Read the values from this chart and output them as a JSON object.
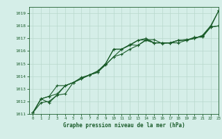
{
  "xlabel": "Graphe pression niveau de la mer (hPa)",
  "xlim": [
    -0.5,
    23
  ],
  "ylim": [
    1011,
    1019.5
  ],
  "yticks": [
    1011,
    1012,
    1013,
    1014,
    1015,
    1016,
    1017,
    1018,
    1019
  ],
  "xticks": [
    0,
    1,
    2,
    3,
    4,
    5,
    6,
    7,
    8,
    9,
    10,
    11,
    12,
    13,
    14,
    15,
    16,
    17,
    18,
    19,
    20,
    21,
    22,
    23
  ],
  "bg_color": "#d5eee8",
  "grid_color": "#b8d8cc",
  "line_color": "#1a5c2a",
  "line1_x": [
    0,
    1,
    2,
    3,
    4,
    5,
    6,
    7,
    8,
    9,
    10,
    11,
    12,
    13,
    14,
    15,
    16,
    17,
    18,
    19,
    20,
    21,
    22,
    23
  ],
  "line1_y": [
    1011.1,
    1012.2,
    1011.9,
    1012.5,
    1012.6,
    1013.5,
    1013.8,
    1014.1,
    1014.3,
    1015.0,
    1016.15,
    1016.15,
    1016.5,
    1016.45,
    1016.9,
    1016.9,
    1016.6,
    1016.65,
    1016.65,
    1016.85,
    1017.0,
    1017.25,
    1018.0,
    1019.2
  ],
  "line2_x": [
    0,
    1,
    2,
    3,
    4,
    5,
    6,
    7,
    8,
    9,
    10,
    11,
    12,
    13,
    14,
    15,
    16,
    17,
    18,
    19,
    20,
    21,
    22,
    23
  ],
  "line2_y": [
    1011.1,
    1012.2,
    1012.4,
    1012.6,
    1013.25,
    1013.5,
    1013.8,
    1014.1,
    1014.4,
    1015.0,
    1016.15,
    1016.15,
    1016.5,
    1016.85,
    1017.0,
    1016.65,
    1016.65,
    1016.65,
    1016.85,
    1016.85,
    1017.1,
    1017.1,
    1017.9,
    1018.0
  ],
  "line3_x": [
    0,
    1,
    2,
    3,
    4,
    5,
    6,
    7,
    8,
    9,
    10,
    11,
    12,
    13,
    14,
    15,
    16,
    17,
    18,
    19,
    20,
    21,
    22,
    23
  ],
  "line3_y": [
    1011.1,
    1012.2,
    1012.4,
    1013.25,
    1013.25,
    1013.5,
    1013.8,
    1014.1,
    1014.4,
    1014.9,
    1015.55,
    1016.15,
    1016.45,
    1016.85,
    1016.9,
    1016.65,
    1016.65,
    1016.65,
    1016.85,
    1016.9,
    1017.0,
    1017.2,
    1017.9,
    1019.2
  ],
  "line4_x": [
    0,
    1,
    2,
    3,
    4,
    5,
    6,
    7,
    8,
    9,
    10,
    11,
    12,
    13,
    14,
    15,
    16,
    17,
    18,
    19,
    20,
    21,
    22,
    23
  ],
  "line4_y": [
    1011.1,
    1011.9,
    1012.0,
    1012.5,
    1013.25,
    1013.5,
    1013.9,
    1014.1,
    1014.3,
    1014.9,
    1015.55,
    1015.75,
    1016.15,
    1016.45,
    1016.85,
    1016.65,
    1016.65,
    1016.65,
    1016.85,
    1016.9,
    1017.0,
    1017.2,
    1017.9,
    1018.0
  ]
}
